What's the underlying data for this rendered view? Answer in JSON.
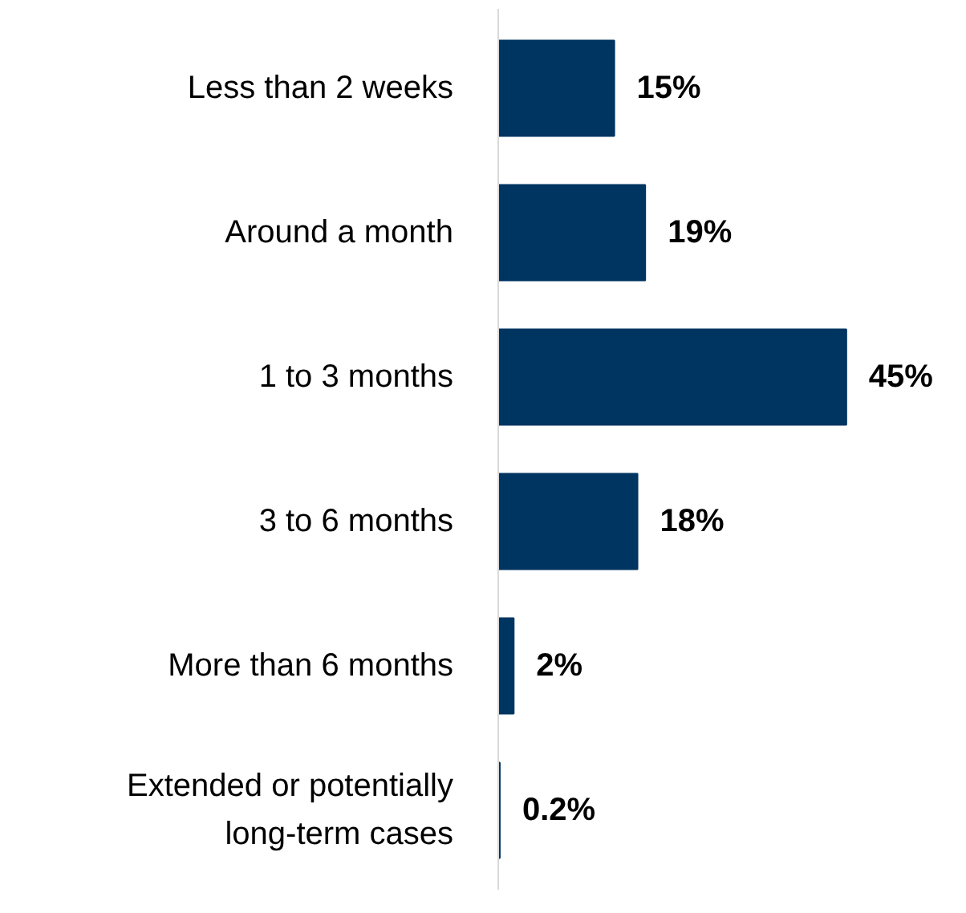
{
  "chart_data": {
    "type": "bar",
    "orientation": "horizontal",
    "categories": [
      "Less than 2 weeks",
      "Around a month",
      "1 to 3 months",
      "3 to 6 months",
      "More than 6 months",
      "Extended or potentially long-term cases"
    ],
    "values": [
      15,
      19,
      45,
      18,
      2,
      0.2
    ],
    "value_labels": [
      "15%",
      "19%",
      "45%",
      "18%",
      "2%",
      "0.2%"
    ],
    "color": "#003461",
    "tick_labels": "y",
    "grid": false
  }
}
